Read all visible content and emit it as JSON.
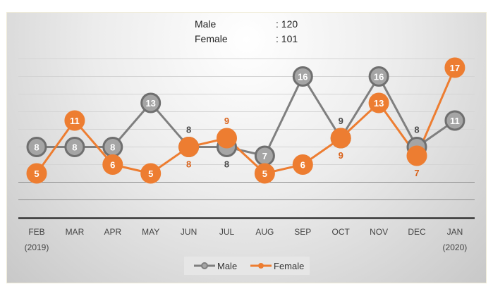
{
  "summary": {
    "male_label": "Male",
    "male_value": ": 120",
    "female_label": "Female",
    "female_value": ": 101"
  },
  "chart_data": {
    "type": "line",
    "title": "",
    "categories": [
      "FEB",
      "MAR",
      "APR",
      "MAY",
      "JUN",
      "JUL",
      "AUG",
      "SEP",
      "OCT",
      "NOV",
      "DEC",
      "JAN"
    ],
    "category_sublabels": [
      "(2019)",
      "",
      "",
      "",
      "",
      "",
      "",
      "",
      "",
      "",
      "",
      "(2020)"
    ],
    "series": [
      {
        "name": "Male",
        "color": "#7f7f7f",
        "values": [
          8,
          8,
          8,
          13,
          8,
          8,
          7,
          16,
          9,
          16,
          8,
          11
        ]
      },
      {
        "name": "Female",
        "color": "#ed7d31",
        "values": [
          5,
          11,
          6,
          5,
          8,
          9,
          5,
          6,
          9,
          13,
          7,
          17
        ]
      }
    ],
    "ylim": [
      0,
      18
    ],
    "ytick_step": 2,
    "grid": true,
    "data_labels": true,
    "legend": "bottom",
    "xlabel": "",
    "ylabel": ""
  }
}
